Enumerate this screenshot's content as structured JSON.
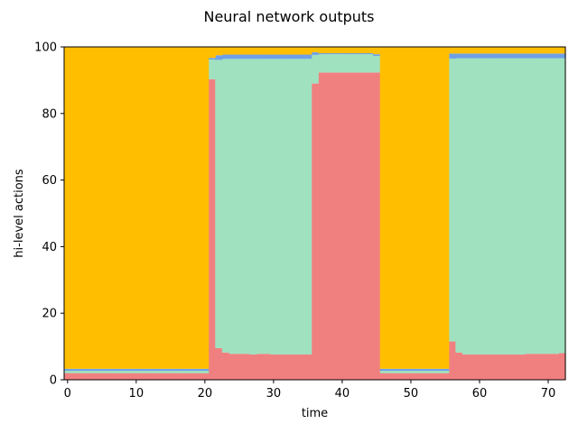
{
  "chart_data": {
    "type": "area",
    "title": "Neural network outputs",
    "xlabel": "time",
    "ylabel": "hi-level actions",
    "xlim": [
      -0.5,
      72.5
    ],
    "ylim": [
      0,
      100
    ],
    "xticks": [
      0,
      10,
      20,
      30,
      40,
      50,
      60,
      70
    ],
    "yticks": [
      0,
      20,
      40,
      60,
      80,
      100
    ],
    "grid": false,
    "stacked": true,
    "step": true,
    "x": [
      0,
      1,
      2,
      3,
      4,
      5,
      6,
      7,
      8,
      9,
      10,
      11,
      12,
      13,
      14,
      15,
      16,
      17,
      18,
      19,
      20,
      21,
      22,
      23,
      24,
      25,
      26,
      27,
      28,
      29,
      30,
      31,
      32,
      33,
      34,
      35,
      36,
      37,
      38,
      39,
      40,
      41,
      42,
      43,
      44,
      45,
      46,
      47,
      48,
      49,
      50,
      51,
      52,
      53,
      54,
      55,
      56,
      57,
      58,
      59,
      60,
      61,
      62,
      63,
      64,
      65,
      66,
      67,
      68,
      69,
      70,
      71,
      72
    ],
    "series": [
      {
        "color": "#f08080",
        "values": [
          2,
          2,
          2,
          2,
          2,
          2,
          2,
          2,
          2,
          2,
          2,
          2,
          2,
          2,
          2,
          2,
          2,
          2,
          2,
          2,
          2,
          90.3,
          9.5,
          8.2,
          7.8,
          7.8,
          7.8,
          7.6,
          7.8,
          7.8,
          7.6,
          7.6,
          7.6,
          7.6,
          7.6,
          7.6,
          89,
          92.3,
          92.3,
          92.3,
          92.3,
          92.3,
          92.3,
          92.3,
          92.3,
          92.3,
          2,
          2,
          2,
          2,
          2,
          2,
          2,
          2,
          2,
          2,
          11.5,
          8.2,
          7.6,
          7.6,
          7.6,
          7.6,
          7.6,
          7.6,
          7.6,
          7.6,
          7.6,
          7.8,
          7.8,
          7.8,
          7.8,
          7.8,
          8
        ]
      },
      {
        "color": "#a0e1c0",
        "values": [
          0.7,
          0.7,
          0.7,
          0.7,
          0.7,
          0.7,
          0.7,
          0.7,
          0.7,
          0.7,
          0.7,
          0.7,
          0.7,
          0.7,
          0.7,
          0.7,
          0.7,
          0.7,
          0.7,
          0.7,
          0.7,
          5.9,
          86.6,
          88.2,
          88.6,
          88.6,
          88.6,
          88.8,
          88.6,
          88.6,
          88.8,
          88.8,
          88.8,
          88.8,
          88.8,
          88.8,
          8.6,
          5.5,
          5.5,
          5.5,
          5.5,
          5.5,
          5.5,
          5.5,
          5.5,
          5,
          0.7,
          0.7,
          0.7,
          0.7,
          0.7,
          0.7,
          0.7,
          0.7,
          0.7,
          0.7,
          85,
          88.4,
          89,
          89,
          89,
          89,
          89,
          89,
          89,
          89,
          89,
          88.8,
          88.8,
          88.8,
          88.8,
          88.8,
          88.6
        ]
      },
      {
        "color": "#6fa0e6",
        "values": [
          0.6,
          0.6,
          0.6,
          0.6,
          0.6,
          0.6,
          0.6,
          0.6,
          0.6,
          0.6,
          0.6,
          0.6,
          0.6,
          0.6,
          0.6,
          0.6,
          0.6,
          0.6,
          0.6,
          0.6,
          0.6,
          0.5,
          1.4,
          1.3,
          1.3,
          1.3,
          1.3,
          1.3,
          1.3,
          1.3,
          1.3,
          1.3,
          1.3,
          1.3,
          1.3,
          1.3,
          0.8,
          0.3,
          0.3,
          0.3,
          0.3,
          0.3,
          0.3,
          0.3,
          0.3,
          0.5,
          0.6,
          0.6,
          0.6,
          0.6,
          0.6,
          0.6,
          0.6,
          0.6,
          0.6,
          0.6,
          1.5,
          1.4,
          1.4,
          1.4,
          1.4,
          1.4,
          1.4,
          1.4,
          1.4,
          1.4,
          1.4,
          1.4,
          1.4,
          1.4,
          1.4,
          1.4,
          1.4
        ]
      },
      {
        "color": "#ffbf00",
        "values": [
          96.7,
          96.7,
          96.7,
          96.7,
          96.7,
          96.7,
          96.7,
          96.7,
          96.7,
          96.7,
          96.7,
          96.7,
          96.7,
          96.7,
          96.7,
          96.7,
          96.7,
          96.7,
          96.7,
          96.7,
          96.7,
          3.3,
          2.5,
          2.3,
          2.3,
          2.3,
          2.3,
          2.3,
          2.3,
          2.3,
          2.3,
          2.3,
          2.3,
          2.3,
          2.3,
          2.3,
          1.6,
          1.9,
          1.9,
          1.9,
          1.9,
          1.9,
          1.9,
          1.9,
          1.9,
          2.2,
          96.7,
          96.7,
          96.7,
          96.7,
          96.7,
          96.7,
          96.7,
          96.7,
          96.7,
          96.7,
          2,
          2,
          2,
          2,
          2,
          2,
          2,
          2,
          2,
          2,
          2,
          2,
          2,
          2,
          2,
          2,
          2
        ]
      }
    ]
  }
}
